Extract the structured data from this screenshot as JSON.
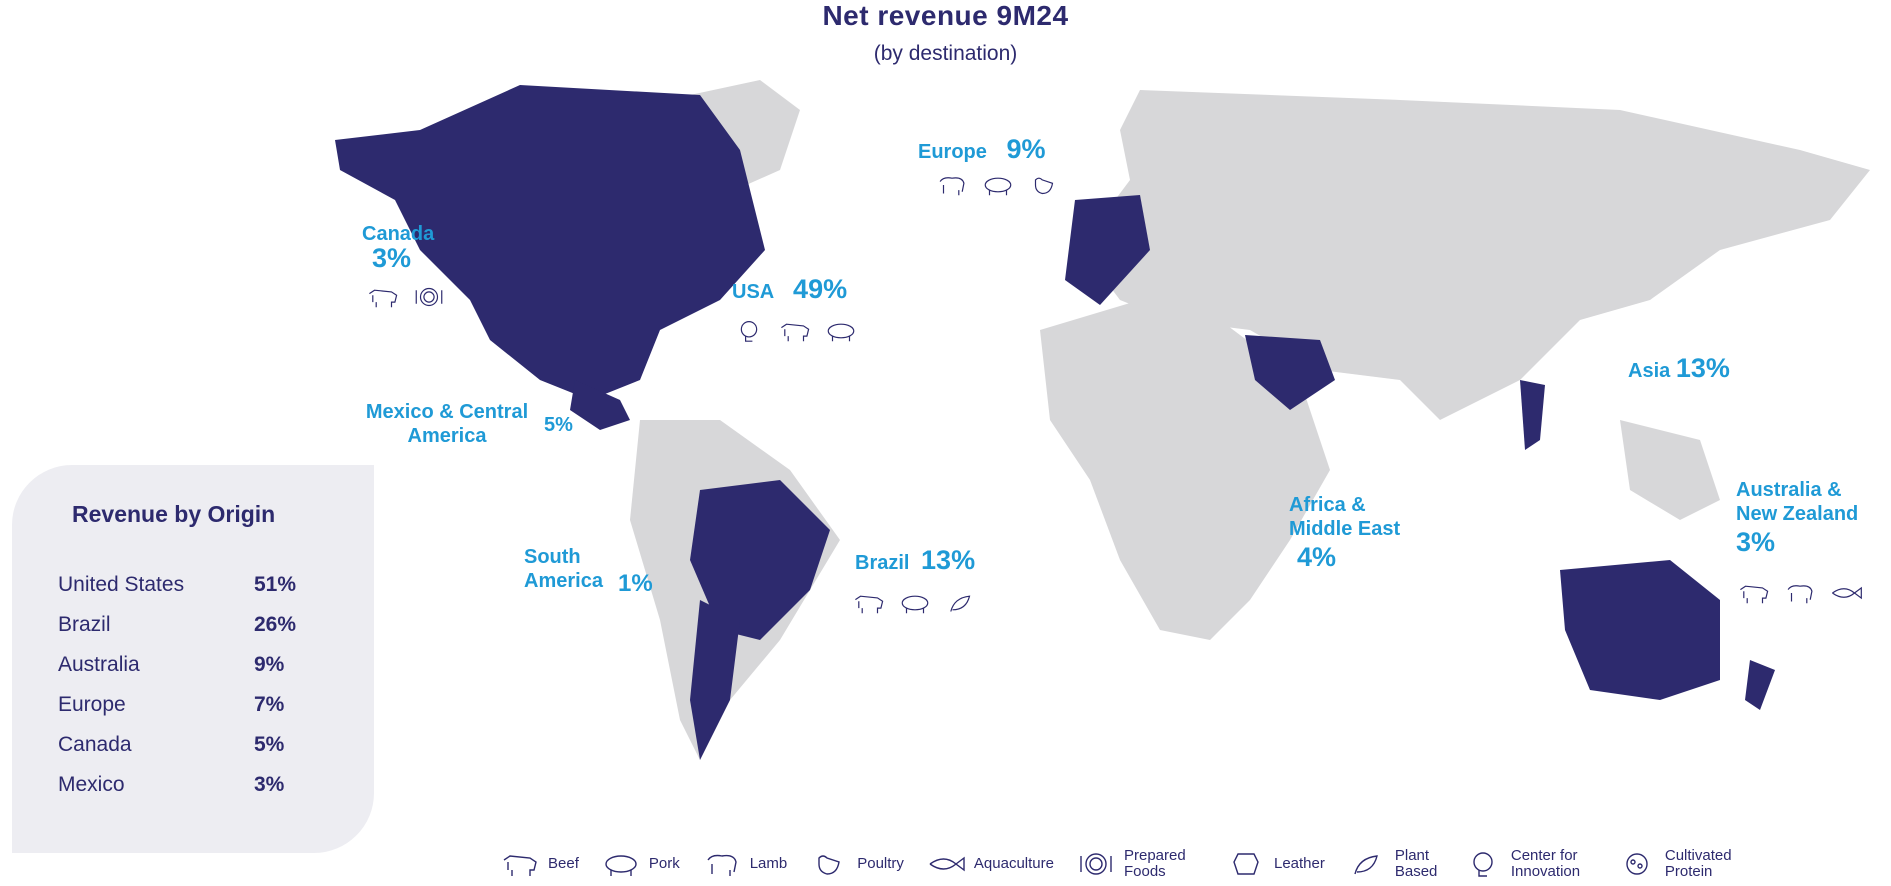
{
  "title": "Net revenue  9M24",
  "subtitle": "(by destination)",
  "regions": {
    "canada": {
      "name": "Canada",
      "pct": "3%"
    },
    "usa": {
      "name": "USA",
      "pct": "49%"
    },
    "mexico": {
      "name": "Mexico & Central America",
      "pct": "5%"
    },
    "south_america": {
      "name": "South America",
      "pct": "1%"
    },
    "brazil": {
      "name": "Brazil",
      "pct": "13%"
    },
    "europe": {
      "name": "Europe",
      "pct": "9%"
    },
    "africa": {
      "name": "Africa & Middle East",
      "pct": "4%"
    },
    "asia": {
      "name": "Asia",
      "pct": "13%"
    },
    "australia": {
      "name": "Australia & New Zealand",
      "pct": "3%"
    }
  },
  "origin": {
    "title": "Revenue by Origin",
    "rows": [
      {
        "label": "United States",
        "value": "51%"
      },
      {
        "label": "Brazil",
        "value": "26%"
      },
      {
        "label": "Australia",
        "value": "9%"
      },
      {
        "label": "Europe",
        "value": "7%"
      },
      {
        "label": "Canada",
        "value": "5%"
      },
      {
        "label": "Mexico",
        "value": "3%"
      }
    ]
  },
  "legend": [
    {
      "icon": "beef-icon",
      "label": "Beef"
    },
    {
      "icon": "pork-icon",
      "label": "Pork"
    },
    {
      "icon": "lamb-icon",
      "label": "Lamb"
    },
    {
      "icon": "poultry-icon",
      "label": "Poultry"
    },
    {
      "icon": "aquaculture-icon",
      "label": "Aquaculture"
    },
    {
      "icon": "prepared-foods-icon",
      "label": "Prepared Foods"
    },
    {
      "icon": "leather-icon",
      "label": "Leather"
    },
    {
      "icon": "plant-based-icon",
      "label": "Plant Based"
    },
    {
      "icon": "center-for-innovation-icon",
      "label": "Center for Innovation"
    },
    {
      "icon": "cultivated-protein-icon",
      "label": "Cultivated Protein"
    }
  ],
  "colors": {
    "highlight": "#2d2a6e",
    "land": "#d7d7d9",
    "accent": "#1f9ad6",
    "panel": "#ededf2"
  }
}
